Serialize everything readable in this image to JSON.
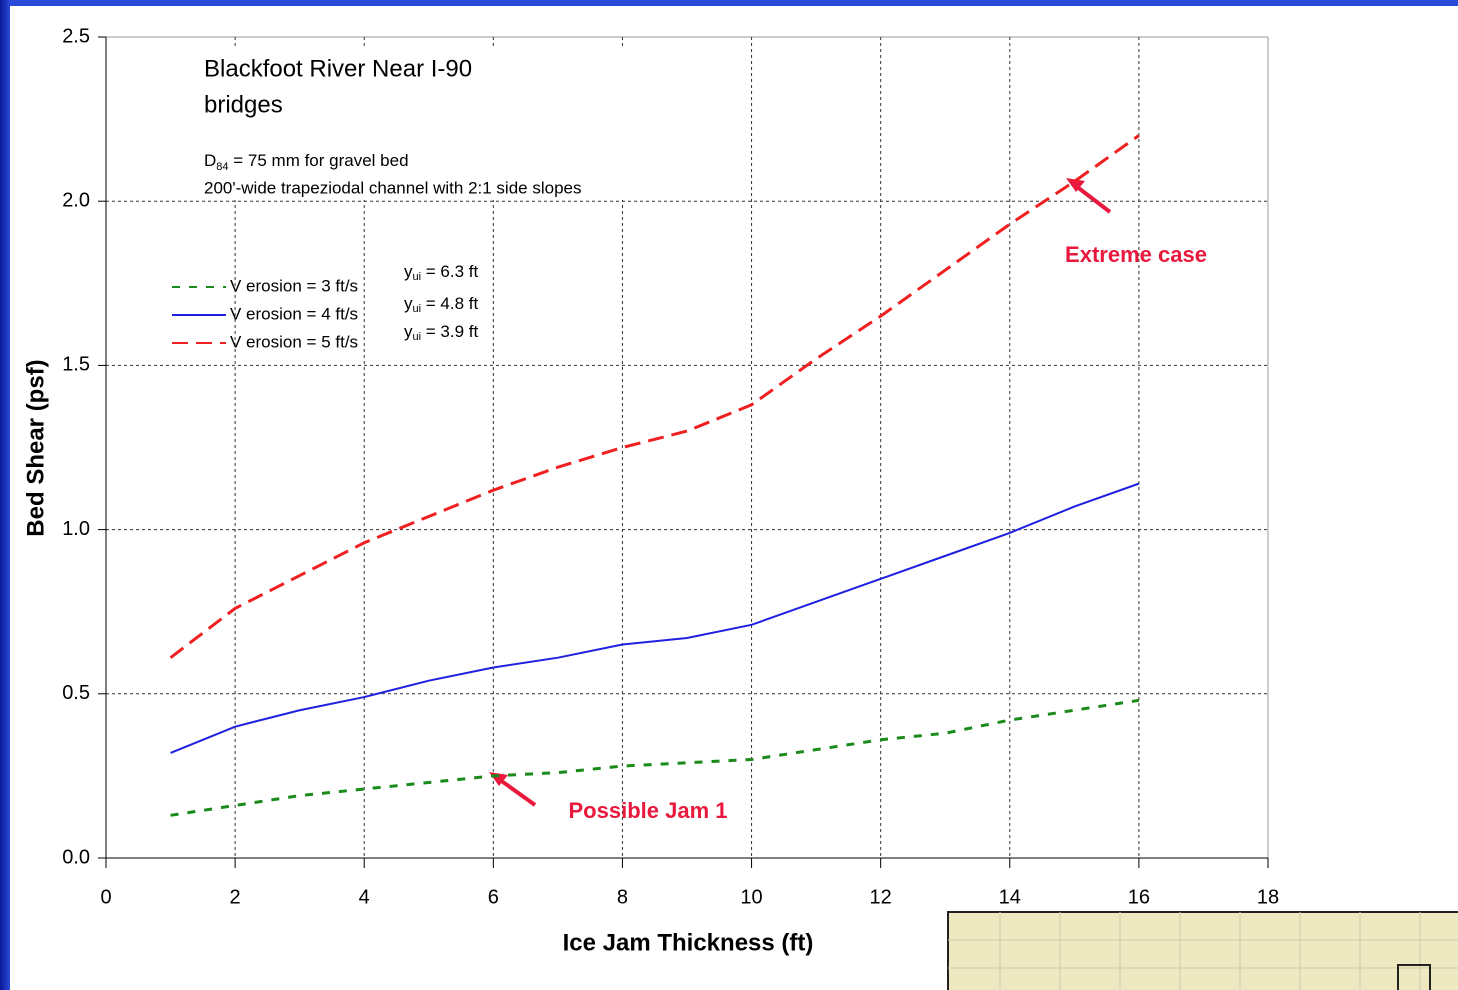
{
  "chart_data": {
    "type": "line",
    "title": [
      "Blackfoot River Near I-90",
      "bridges"
    ],
    "notes": [
      {
        "symbol": "D",
        "subscript": "84",
        "text": " = 75 mm for gravel bed"
      },
      {
        "text": "200'-wide trapeziodal channel with 2:1 side slopes"
      }
    ],
    "x_label": "Ice Jam Thickness (ft)",
    "y_label": "Bed Shear (psf)",
    "x": [
      1,
      2,
      3,
      4,
      5,
      6,
      7,
      8,
      9,
      10,
      11,
      12,
      13,
      14,
      15,
      16
    ],
    "series": [
      {
        "name": "V erosion = 3 ft/s",
        "color": "#1a8a1a",
        "line_style": "dotted",
        "legend_note": {
          "symbol": "y",
          "subscript": "ui",
          "text": " = 6.3 ft"
        },
        "values": [
          0.13,
          0.16,
          0.19,
          0.21,
          0.23,
          0.25,
          0.26,
          0.28,
          0.29,
          0.3,
          0.33,
          0.36,
          0.38,
          0.42,
          0.45,
          0.48
        ]
      },
      {
        "name": "V erosion = 4 ft/s",
        "color": "#2020e0",
        "line_style": "solid",
        "legend_note": {
          "symbol": "y",
          "subscript": "ui",
          "text": " = 4.8 ft"
        },
        "values": [
          0.32,
          0.4,
          0.45,
          0.49,
          0.54,
          0.58,
          0.61,
          0.65,
          0.67,
          0.71,
          0.78,
          0.85,
          0.92,
          0.99,
          1.07,
          1.14
        ]
      },
      {
        "name": "V erosion = 5 ft/s",
        "color": "#f02020",
        "line_style": "dashed",
        "legend_note": {
          "symbol": "y",
          "subscript": "ui",
          "text": " = 3.9 ft"
        },
        "values": [
          0.61,
          0.76,
          0.86,
          0.96,
          1.04,
          1.12,
          1.19,
          1.25,
          1.3,
          1.38,
          1.52,
          1.65,
          1.79,
          1.93,
          2.06,
          2.2
        ]
      }
    ],
    "annotations": [
      {
        "text": "Extreme case",
        "color": "#e8193c"
      },
      {
        "text": "Possible Jam 1",
        "color": "#e8193c"
      }
    ],
    "xlim": [
      0,
      18
    ],
    "xticks": [
      0,
      2,
      4,
      6,
      8,
      10,
      12,
      14,
      16,
      18
    ],
    "ylim": [
      0,
      2.5
    ],
    "yticks": [
      {
        "value": 0,
        "label": "0.0"
      },
      0.5,
      {
        "value": 1,
        "label": "1.0"
      },
      1.5,
      {
        "value": 2,
        "label": "2.0"
      },
      2.5
    ],
    "grid": true
  }
}
